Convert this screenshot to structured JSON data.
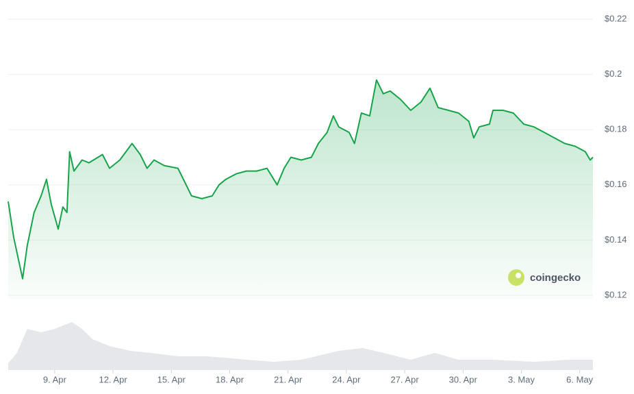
{
  "chart_data": {
    "type": "line",
    "color": "#16a34a",
    "grid": true,
    "watermark": "coingecko",
    "x": [
      6.61,
      6.89,
      7.35,
      7.59,
      7.94,
      8.3,
      8.58,
      8.82,
      9.18,
      9.42,
      9.63,
      9.77,
      9.99,
      10.41,
      10.76,
      11.46,
      11.82,
      12.35,
      12.98,
      13.4,
      13.75,
      14.11,
      14.63,
      15.34,
      15.69,
      16.04,
      16.57,
      17.1,
      17.45,
      17.8,
      18.33,
      18.86,
      19.39,
      19.92,
      20.44,
      20.8,
      21.15,
      21.68,
      22.2,
      22.56,
      23.01,
      23.33,
      23.61,
      24.14,
      24.42,
      24.77,
      25.2,
      25.55,
      25.9,
      26.25,
      26.78,
      27.31,
      27.84,
      28.3,
      28.72,
      29.25,
      29.77,
      30.3,
      30.55,
      30.83,
      31.36,
      31.54,
      32.06,
      32.59,
      33.12,
      33.65,
      34.18,
      34.7,
      35.23,
      35.76,
      36.29,
      36.54,
      36.68
    ],
    "values": [
      0.154,
      0.141,
      0.126,
      0.138,
      0.15,
      0.156,
      0.162,
      0.153,
      0.144,
      0.152,
      0.15,
      0.172,
      0.165,
      0.169,
      0.168,
      0.171,
      0.166,
      0.169,
      0.175,
      0.171,
      0.166,
      0.169,
      0.167,
      0.166,
      0.161,
      0.156,
      0.155,
      0.156,
      0.16,
      0.162,
      0.164,
      0.165,
      0.165,
      0.166,
      0.16,
      0.166,
      0.17,
      0.169,
      0.17,
      0.175,
      0.179,
      0.185,
      0.181,
      0.179,
      0.175,
      0.186,
      0.185,
      0.198,
      0.193,
      0.194,
      0.191,
      0.187,
      0.19,
      0.195,
      0.188,
      0.187,
      0.186,
      0.183,
      0.177,
      0.181,
      0.182,
      0.187,
      0.187,
      0.186,
      0.182,
      0.181,
      0.179,
      0.177,
      0.175,
      0.174,
      0.172,
      0.169,
      0.17
    ],
    "xlim": [
      6.61,
      36.68
    ],
    "xticks": [
      {
        "value": 9,
        "label": "9. Apr"
      },
      {
        "value": 12,
        "label": "12. Apr"
      },
      {
        "value": 15,
        "label": "15. Apr"
      },
      {
        "value": 18,
        "label": "18. Apr"
      },
      {
        "value": 21,
        "label": "21. Apr"
      },
      {
        "value": 24,
        "label": "24. Apr"
      },
      {
        "value": 27,
        "label": "27. Apr"
      },
      {
        "value": 30,
        "label": "30. Apr"
      },
      {
        "value": 33,
        "label": "3. May"
      },
      {
        "value": 36,
        "label": "6. May"
      }
    ],
    "ylim": [
      0.12,
      0.22
    ],
    "yticks": [
      {
        "value": 0.12,
        "label": "$0.12"
      },
      {
        "value": 0.14,
        "label": "$0.14"
      },
      {
        "value": 0.16,
        "label": "$0.16"
      },
      {
        "value": 0.18,
        "label": "$0.18"
      },
      {
        "value": 0.2,
        "label": "$0.2"
      },
      {
        "value": 0.22,
        "label": "$0.22"
      }
    ],
    "volume": {
      "color": "#e5e7eb",
      "ylim": [
        0,
        80
      ],
      "x": [
        6.61,
        7.06,
        7.59,
        8.3,
        9.0,
        9.88,
        10.41,
        10.94,
        11.82,
        12.87,
        13.93,
        15.34,
        16.75,
        17.8,
        18.86,
        20.27,
        21.68,
        22.73,
        23.61,
        24.85,
        25.9,
        27.31,
        28.54,
        29.77,
        31.54,
        33.65,
        35.41,
        36.68
      ],
      "values": [
        10,
        25,
        60,
        55,
        60,
        70,
        60,
        45,
        35,
        28,
        25,
        20,
        20,
        18,
        15,
        12,
        15,
        22,
        28,
        32,
        25,
        15,
        25,
        15,
        15,
        12,
        15,
        15
      ]
    }
  }
}
